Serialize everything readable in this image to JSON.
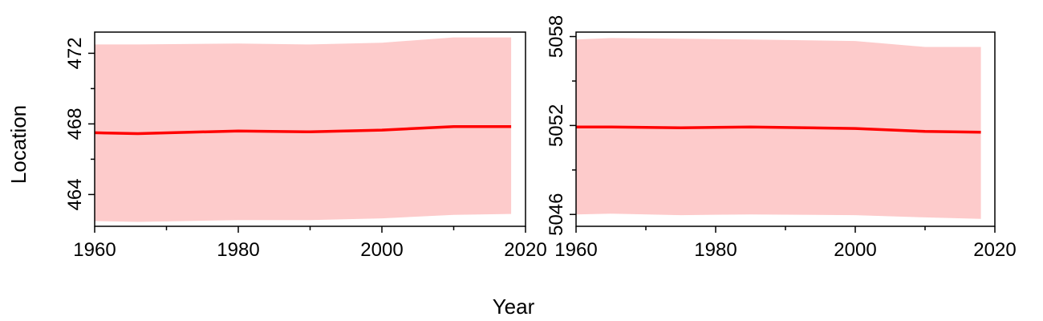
{
  "figure": {
    "xlabel": "Year",
    "ylabel": "Location"
  },
  "colors": {
    "line": "#ff0000",
    "band": "#fdcbcb",
    "axis": "#000000"
  },
  "chart_data": [
    {
      "type": "line",
      "x": [
        1960,
        1966,
        1980,
        1990,
        2000,
        2010,
        2018
      ],
      "y": [
        467.5,
        467.45,
        467.6,
        467.55,
        467.65,
        467.85,
        467.85
      ],
      "band_upper": [
        472.5,
        472.5,
        472.55,
        472.5,
        472.6,
        472.9,
        472.9
      ],
      "band_lower": [
        462.5,
        462.45,
        462.55,
        462.55,
        462.65,
        462.85,
        462.9
      ],
      "xlim": [
        1960,
        2020
      ],
      "ylim": [
        462.2,
        473.2
      ],
      "xticks": [
        1960,
        1980,
        2000,
        2020
      ],
      "xticks_minor": [
        1970,
        1990,
        2010
      ],
      "yticks": [
        464,
        468,
        472
      ],
      "yticks_minor": [
        466,
        470
      ],
      "xtick_labels": [
        "1960",
        "1980",
        "2000",
        "2020"
      ],
      "ytick_labels": [
        "464",
        "468",
        "472"
      ]
    },
    {
      "type": "line",
      "x": [
        1960,
        1965,
        1975,
        1985,
        2000,
        2010,
        2018
      ],
      "y": [
        5051.9,
        5051.9,
        5051.85,
        5051.9,
        5051.8,
        5051.6,
        5051.55
      ],
      "band_upper": [
        5057.8,
        5057.9,
        5057.85,
        5057.8,
        5057.7,
        5057.3,
        5057.3
      ],
      "band_lower": [
        5046.0,
        5046.05,
        5045.95,
        5046.0,
        5045.95,
        5045.8,
        5045.7
      ],
      "xlim": [
        1960,
        2020
      ],
      "ylim": [
        5045.2,
        5058.3
      ],
      "xticks": [
        1960,
        1980,
        2000,
        2020
      ],
      "xticks_minor": [
        1970,
        1990,
        2010
      ],
      "yticks": [
        5046,
        5052,
        5058
      ],
      "yticks_minor": [
        5049,
        5055
      ],
      "xtick_labels": [
        "1960",
        "1980",
        "2000",
        "2020"
      ],
      "ytick_labels": [
        "5046",
        "5052",
        "5058"
      ]
    }
  ]
}
